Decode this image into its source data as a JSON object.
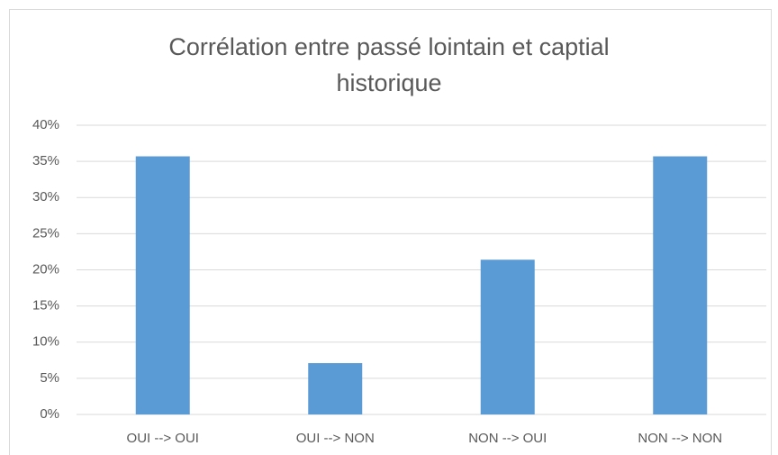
{
  "chart_data": {
    "type": "bar",
    "title": "Corrélation entre passé lointain et captial historique",
    "categories": [
      "OUI --> OUI",
      "OUI --> NON",
      "NON --> OUI",
      "NON --> NON"
    ],
    "values": [
      35.7,
      7.1,
      21.4,
      35.7
    ],
    "color": "#5b9bd5",
    "ylim": [
      0,
      40
    ],
    "yticks": [
      {
        "value": 0,
        "label": "0%"
      },
      {
        "value": 5,
        "label": "5%"
      },
      {
        "value": 10,
        "label": "10%"
      },
      {
        "value": 15,
        "label": "15%"
      },
      {
        "value": 20,
        "label": "20%"
      },
      {
        "value": 25,
        "label": "25%"
      },
      {
        "value": 30,
        "label": "30%"
      },
      {
        "value": 35,
        "label": "35%"
      },
      {
        "value": 40,
        "label": "40%"
      }
    ],
    "grid": true
  }
}
